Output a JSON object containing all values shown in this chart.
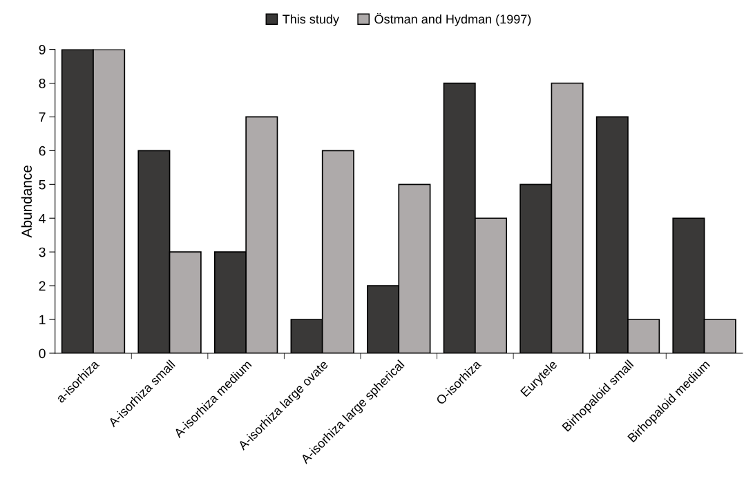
{
  "chart_data": {
    "type": "bar",
    "ylabel": "Abundance",
    "categories": [
      "a-isorhiza",
      "A-isorhiza small",
      "A-isorhiza medium",
      "A-isorhiza large ovate",
      "A-isorhiza large spherical",
      "O-isorhiza",
      "Eurytele",
      "Birhopaloid small",
      "Birhopaloid medium"
    ],
    "series": [
      {
        "name": "This study",
        "color": "#3a3938",
        "values": [
          9,
          6,
          3,
          1,
          2,
          8,
          5,
          7,
          4
        ]
      },
      {
        "name": "Östman and Hydman (1997)",
        "color": "#aeaaaa",
        "values": [
          9,
          3,
          7,
          6,
          5,
          4,
          8,
          1,
          1
        ]
      }
    ],
    "ylim": [
      0,
      9
    ],
    "yticks": [
      0,
      1,
      2,
      3,
      4,
      5,
      6,
      7,
      8,
      9
    ],
    "grid": false,
    "legend": "top"
  }
}
